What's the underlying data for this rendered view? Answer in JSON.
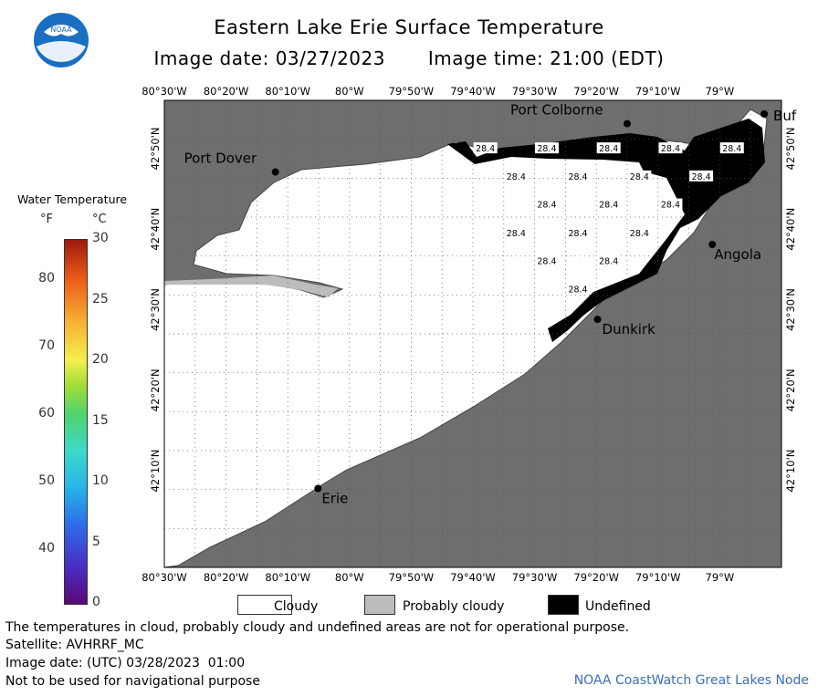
{
  "header": {
    "title": "Eastern Lake Erie Surface Temperature",
    "image_date": "Image date: 03/27/2023",
    "image_time": "Image time: 21:00 (EDT)"
  },
  "logo": {
    "text": "NOAA"
  },
  "legend": {
    "title": "Water Temperature",
    "unit_f": "°F",
    "unit_c": "°C",
    "f_ticks": [
      "40",
      "50",
      "60",
      "70",
      "80"
    ],
    "f_values": [
      40,
      50,
      60,
      70,
      80
    ],
    "c_ticks": [
      "0",
      "5",
      "10",
      "15",
      "20",
      "25",
      "30"
    ],
    "c_values": [
      0,
      5,
      10,
      15,
      20,
      25,
      30
    ]
  },
  "map": {
    "lon_labels": [
      "80°30'W",
      "80°20'W",
      "80°10'W",
      "80°W",
      "79°50'W",
      "79°40'W",
      "79°30'W",
      "79°20'W",
      "79°10'W",
      "79°W"
    ],
    "lon_values": [
      -80.5,
      -80.3333,
      -80.1667,
      -80.0,
      -79.8333,
      -79.6667,
      -79.5,
      -79.3333,
      -79.1667,
      -79.0
    ],
    "lat_labels": [
      "42°50'N",
      "42°40'N",
      "42°30'N",
      "42°20'N",
      "42°10'N"
    ],
    "lat_values": [
      42.8333,
      42.6667,
      42.5,
      42.3333,
      42.1667
    ],
    "extent": {
      "lon_min": -80.5,
      "lon_max": -78.8333,
      "lat_min": 41.9667,
      "lat_max": 42.9333
    },
    "cities": [
      {
        "name": "Port Dover",
        "lon": -80.2,
        "lat": 42.785
      },
      {
        "name": "Port Colborne",
        "lon": -79.25,
        "lat": 42.885
      },
      {
        "name": "Buffalo",
        "label": "Buf",
        "lon": -78.88,
        "lat": 42.905
      },
      {
        "name": "Angola",
        "lon": -79.02,
        "lat": 42.635
      },
      {
        "name": "Dunkirk",
        "lon": -79.33,
        "lat": 42.48
      },
      {
        "name": "Erie",
        "lon": -80.085,
        "lat": 42.13
      }
    ],
    "temperature_labels": [
      {
        "value": "28.4",
        "lon": -79.633,
        "lat": 42.833
      },
      {
        "value": "28.4",
        "lon": -79.467,
        "lat": 42.833
      },
      {
        "value": "28.4",
        "lon": -79.3,
        "lat": 42.833
      },
      {
        "value": "28.4",
        "lon": -79.133,
        "lat": 42.833
      },
      {
        "value": "28.4",
        "lon": -78.967,
        "lat": 42.833
      },
      {
        "value": "28.4",
        "lon": -79.55,
        "lat": 42.775
      },
      {
        "value": "28.4",
        "lon": -79.383,
        "lat": 42.775
      },
      {
        "value": "28.4",
        "lon": -79.217,
        "lat": 42.775
      },
      {
        "value": "28.4",
        "lon": -79.05,
        "lat": 42.775
      },
      {
        "value": "28.4",
        "lon": -79.467,
        "lat": 42.717
      },
      {
        "value": "28.4",
        "lon": -79.3,
        "lat": 42.717
      },
      {
        "value": "28.4",
        "lon": -79.133,
        "lat": 42.717
      },
      {
        "value": "28.4",
        "lon": -79.55,
        "lat": 42.658
      },
      {
        "value": "28.4",
        "lon": -79.383,
        "lat": 42.658
      },
      {
        "value": "28.4",
        "lon": -79.217,
        "lat": 42.658
      },
      {
        "value": "28.4",
        "lon": -79.467,
        "lat": 42.6
      },
      {
        "value": "28.4",
        "lon": -79.3,
        "lat": 42.6
      },
      {
        "value": "28.4",
        "lon": -79.383,
        "lat": 42.542
      }
    ]
  },
  "key": {
    "cloudy": "Cloudy",
    "probably_cloudy": "Probably cloudy",
    "undefined": "Undefined",
    "colors": {
      "cloudy": "#ffffff",
      "probably_cloudy": "#bcbcbc",
      "undefined": "#000000",
      "land": "#6e6e6e"
    }
  },
  "footer": {
    "disclaimer": "The temperatures in cloud, probably cloudy and undefined areas are not for operational purpose.",
    "satellite": "Satellite: AVHRRF_MC",
    "utc_date": "Image date: (UTC) 03/28/2023  01:00",
    "nav_warning": "Not to be used for navigational purpose",
    "credit": "NOAA CoastWatch Great Lakes Node"
  }
}
